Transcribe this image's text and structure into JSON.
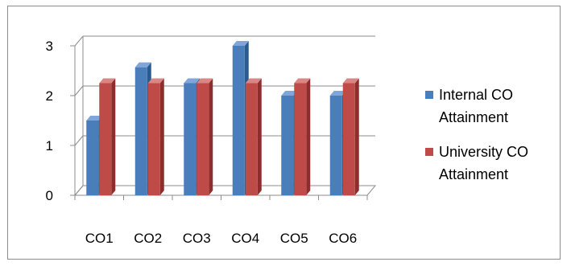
{
  "chart_data": {
    "type": "bar",
    "categories": [
      "CO1",
      "CO2",
      "CO3",
      "CO4",
      "CO5",
      "CO6"
    ],
    "series": [
      {
        "name": "Internal CO Attainment",
        "values": [
          1.5,
          2.57,
          2.25,
          3.0,
          2.0,
          2.0
        ],
        "color": "#4a7ebb",
        "side": "#2c5a8e",
        "top": "#7ea6d8"
      },
      {
        "name": "University CO Attainment",
        "values": [
          2.25,
          2.25,
          2.25,
          2.25,
          2.25,
          2.25
        ],
        "color": "#be4b48",
        "side": "#8e2e2c",
        "top": "#d98684"
      }
    ],
    "yticks": [
      0,
      1,
      2,
      3
    ],
    "ylim": [
      0,
      3
    ],
    "grid": true,
    "legend_position": "right",
    "title": "",
    "xlabel": "",
    "ylabel": ""
  }
}
